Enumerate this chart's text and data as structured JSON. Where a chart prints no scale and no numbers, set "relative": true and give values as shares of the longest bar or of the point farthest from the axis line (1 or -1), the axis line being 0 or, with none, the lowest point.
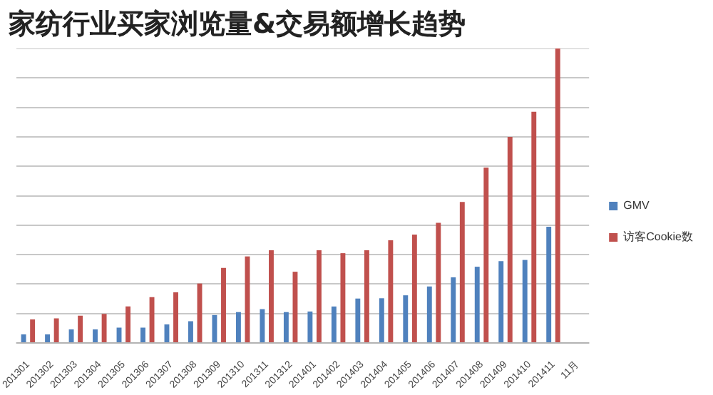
{
  "chart_data": {
    "type": "bar",
    "title": "家纺行业买家浏览量&交易额增长趋势",
    "relative": true,
    "grid": "y",
    "legend": "right",
    "categories": [
      "201301",
      "201302",
      "201303",
      "201304",
      "201305",
      "201306",
      "201307",
      "201308",
      "201309",
      "201310",
      "201311",
      "201312",
      "201401",
      "201402",
      "201403",
      "201404",
      "201405",
      "201406",
      "201407",
      "201408",
      "201409",
      "201410",
      "201411",
      "11月"
    ],
    "series": [
      {
        "name": "GMV",
        "color": "#4f81bd",
        "values": [
          0.029,
          0.029,
          0.046,
          0.046,
          0.052,
          0.052,
          0.063,
          0.074,
          0.095,
          0.105,
          0.115,
          0.105,
          0.107,
          0.124,
          0.151,
          0.152,
          0.162,
          0.192,
          0.223,
          0.259,
          0.278,
          0.282,
          0.395,
          null
        ]
      },
      {
        "name": "访客Cookie数",
        "color": "#c0504d",
        "values": [
          0.08,
          0.084,
          0.093,
          0.099,
          0.124,
          0.156,
          0.172,
          0.202,
          0.255,
          0.294,
          0.315,
          0.242,
          0.315,
          0.305,
          0.315,
          0.349,
          0.368,
          0.408,
          0.479,
          0.596,
          0.7,
          0.785,
          1,
          null
        ]
      }
    ]
  }
}
